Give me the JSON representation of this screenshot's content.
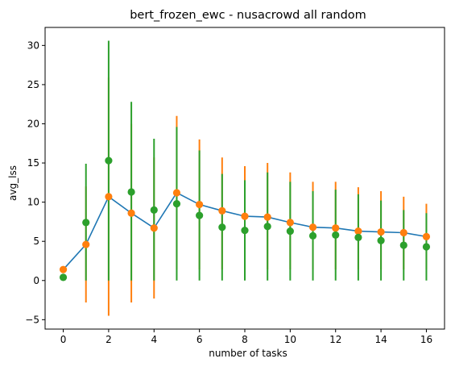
{
  "chart_data": {
    "type": "line",
    "title": "bert_frozen_ewc - nusacrowd all random",
    "xlabel": "number of tasks",
    "ylabel": "avg_lss",
    "xlim": [
      -0.8,
      16.8
    ],
    "ylim": [
      -6.2,
      32.3
    ],
    "xticks": [
      0,
      2,
      4,
      6,
      8,
      10,
      12,
      14,
      16
    ],
    "yticks": [
      -5,
      0,
      5,
      10,
      15,
      20,
      25,
      30
    ],
    "grid": false,
    "x": [
      0,
      1,
      2,
      3,
      4,
      5,
      6,
      7,
      8,
      9,
      10,
      11,
      12,
      13,
      14,
      15,
      16
    ],
    "series": [
      {
        "role": "mean-line",
        "color": "#1f77b4",
        "values": [
          1.4,
          4.6,
          10.7,
          8.6,
          6.7,
          11.2,
          9.7,
          8.9,
          8.2,
          8.1,
          7.4,
          6.8,
          6.7,
          6.3,
          6.2,
          6.1,
          5.6
        ]
      },
      {
        "role": "mean-errorbar",
        "color": "#ff7f0e",
        "values": [
          1.4,
          4.6,
          10.7,
          8.6,
          6.7,
          11.2,
          9.7,
          8.9,
          8.2,
          8.1,
          7.4,
          6.8,
          6.7,
          6.3,
          6.2,
          6.1,
          5.6
        ],
        "lower": [
          1.4,
          -2.8,
          -4.5,
          -2.8,
          -2.3,
          1.4,
          1.4,
          1.4,
          1.4,
          1.4,
          1.4,
          1.4,
          1.4,
          1.4,
          1.4,
          1.4,
          1.4
        ],
        "upper": [
          1.4,
          12.0,
          25.9,
          20.0,
          15.7,
          21.0,
          18.0,
          15.7,
          14.6,
          15.0,
          13.8,
          12.6,
          12.6,
          11.9,
          11.4,
          10.7,
          9.8
        ]
      },
      {
        "role": "second-errorbar",
        "color": "#2ca02c",
        "values": [
          0.4,
          7.4,
          15.3,
          11.3,
          9.0,
          9.8,
          8.3,
          6.8,
          6.4,
          6.9,
          6.3,
          5.7,
          5.8,
          5.5,
          5.1,
          4.5,
          4.3
        ],
        "lower": [
          0.4,
          0.0,
          0.0,
          0.0,
          0.0,
          0.0,
          0.0,
          0.0,
          0.0,
          0.0,
          0.0,
          0.0,
          0.0,
          0.0,
          0.0,
          0.0,
          0.0
        ],
        "upper": [
          0.4,
          14.9,
          30.6,
          22.8,
          18.1,
          19.6,
          16.6,
          13.6,
          12.8,
          13.8,
          12.6,
          11.4,
          11.6,
          11.0,
          10.2,
          9.0,
          8.6
        ]
      }
    ]
  }
}
